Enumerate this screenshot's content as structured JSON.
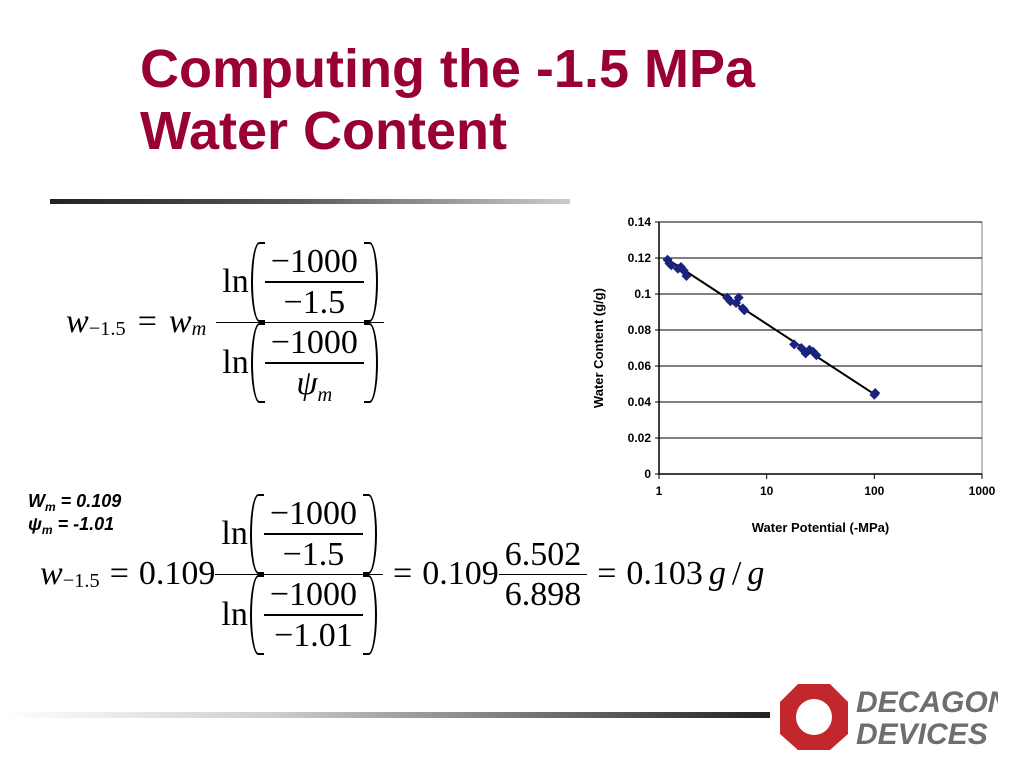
{
  "title": {
    "line1": "Computing the -1.5 MPa",
    "line2": "Water Content"
  },
  "eq1": {
    "lhs_var": "w",
    "lhs_sub": "−1.5",
    "eq": "=",
    "rhs_var": "w",
    "rhs_sub": "m",
    "ln": "ln",
    "top_num": "−1000",
    "top_den": "−1.5",
    "bot_num": "−1000",
    "bot_den": "ψ",
    "bot_den_sub": "m"
  },
  "params": {
    "wm_label": "W",
    "wm_sub": "m",
    "wm_value": " = 0.109",
    "psi_label": "ψ",
    "psi_sub": "m",
    "psi_value": " = -1.01"
  },
  "eq2": {
    "lhs_var": "w",
    "lhs_sub": "−1.5",
    "eq": "=",
    "coef": "0.109",
    "ln": "ln",
    "top_num": "−1000",
    "top_den": "−1.5",
    "bot_num": "−1000",
    "bot_den": "−1.01",
    "coef2": "0.109",
    "num2": "6.502",
    "den2": "6.898",
    "result": "0.103",
    "unit_g1": "g",
    "unit_slash": "/",
    "unit_g2": "g"
  },
  "logo": {
    "line1": "DECAGON",
    "line2": "DEVICES",
    "color": "#c1272d",
    "text_color": "#6d6e71"
  },
  "chart_data": {
    "type": "scatter",
    "xlabel": "Water Potential (-MPa)",
    "ylabel": "Water Content (g/g)",
    "x_scale": "log",
    "xlim": [
      1,
      1000
    ],
    "ylim": [
      0,
      0.14
    ],
    "x_ticks": [
      "1",
      "10",
      "100",
      "1000"
    ],
    "y_ticks": [
      "0",
      "0.02",
      "0.04",
      "0.06",
      "0.08",
      "0.1",
      "0.12",
      "0.14"
    ],
    "grid": "horizontal",
    "marker_color": "#1a237e",
    "points": [
      {
        "x": 1.2,
        "y": 0.119
      },
      {
        "x": 1.25,
        "y": 0.117
      },
      {
        "x": 1.3,
        "y": 0.116
      },
      {
        "x": 1.5,
        "y": 0.114
      },
      {
        "x": 1.6,
        "y": 0.115
      },
      {
        "x": 1.7,
        "y": 0.113
      },
      {
        "x": 1.8,
        "y": 0.11
      },
      {
        "x": 4.3,
        "y": 0.098
      },
      {
        "x": 4.6,
        "y": 0.096
      },
      {
        "x": 5.2,
        "y": 0.095
      },
      {
        "x": 5.5,
        "y": 0.098
      },
      {
        "x": 6.0,
        "y": 0.092
      },
      {
        "x": 6.2,
        "y": 0.091
      },
      {
        "x": 18,
        "y": 0.072
      },
      {
        "x": 21,
        "y": 0.07
      },
      {
        "x": 23,
        "y": 0.067
      },
      {
        "x": 25,
        "y": 0.069
      },
      {
        "x": 27,
        "y": 0.068
      },
      {
        "x": 29,
        "y": 0.066
      },
      {
        "x": 100,
        "y": 0.044
      },
      {
        "x": 102,
        "y": 0.045
      }
    ],
    "trendline": {
      "x": [
        1.15,
        102
      ],
      "y": [
        0.12,
        0.044
      ]
    }
  }
}
